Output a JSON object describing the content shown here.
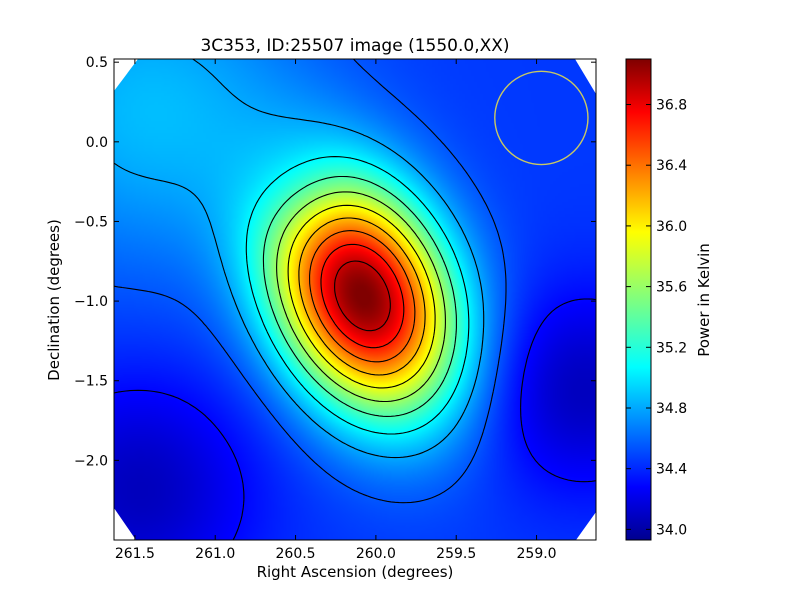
{
  "chart_data": {
    "type": "heatmap",
    "title": "3C353, ID:25507 image (1550.0,XX)",
    "xlabel": "Right Ascension (degrees)",
    "ylabel": "Declination (degrees)",
    "colorbar_label": "Power in Kelvin",
    "colormap": "jet",
    "xlim": [
      261.63,
      258.63
    ],
    "ylim": [
      -2.5,
      0.52
    ],
    "x_ticks": [
      261.5,
      261.0,
      260.5,
      260.0,
      259.5,
      259.0
    ],
    "x_tick_labels": [
      "261.5",
      "261.0",
      "260.5",
      "260.0",
      "259.5",
      "259.0"
    ],
    "y_ticks": [
      0.5,
      0.0,
      -0.5,
      -1.0,
      -1.5,
      -2.0
    ],
    "y_tick_labels": [
      "0.5",
      "0.0",
      "−0.5",
      "−1.0",
      "−1.5",
      "−2.0"
    ],
    "colorbar_range": [
      33.93,
      37.1
    ],
    "colorbar_ticks": [
      34.0,
      34.4,
      34.8,
      35.2,
      35.6,
      36.0,
      36.4,
      36.8
    ],
    "colorbar_tick_labels": [
      "34.0",
      "34.4",
      "34.8",
      "35.2",
      "35.6",
      "36.0",
      "36.4",
      "36.8"
    ],
    "peak": {
      "ra": 260.08,
      "dec": -0.97,
      "value": 37.05
    },
    "beam_circle": {
      "ra": 258.97,
      "dec": 0.15,
      "radius_deg": 0.29,
      "color": "#c8c864"
    },
    "contour_color": "#000000"
  }
}
